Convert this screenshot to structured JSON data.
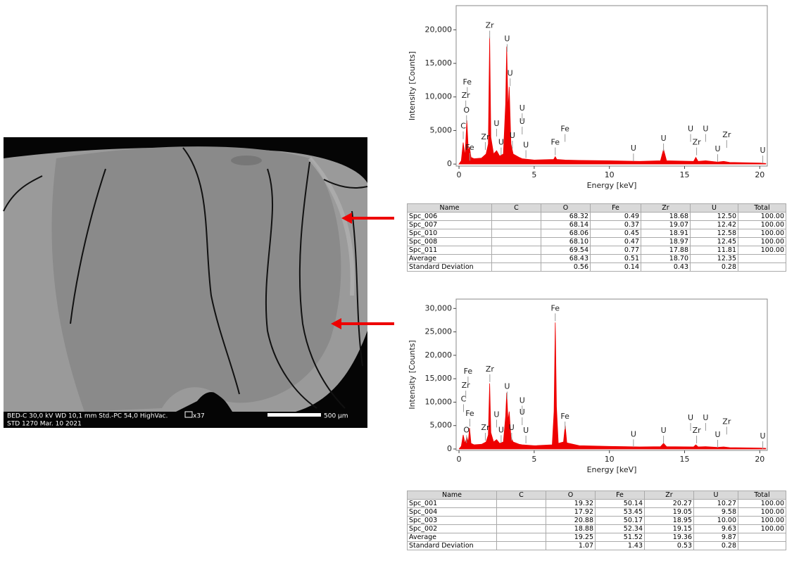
{
  "image": {
    "labels": [
      "BED-C  30,0 kV  WD 10,1 mm  Std.-PC 54,0  HighVac.",
      "x37",
      "STD    1270    Mar. 10 2021",
      "500 µm"
    ]
  },
  "chart_data": [
    {
      "type": "area",
      "x_label": "Energy [keV]",
      "y_label": "Intensity [Counts]",
      "color": "#ee0000",
      "xlim": [
        -0.19,
        20.5
      ],
      "ylim": [
        -300,
        23600
      ],
      "xticks": [
        0,
        5,
        10,
        15,
        20
      ],
      "yticks": [
        0,
        {
          "value": 5000,
          "label": "5,000"
        },
        {
          "value": 10000,
          "label": "10,000"
        },
        {
          "value": 15000,
          "label": "15,000"
        },
        {
          "value": 20000,
          "label": "20,000"
        }
      ],
      "x": [
        0,
        0.15,
        0.28,
        0.4,
        0.52,
        0.62,
        0.7,
        0.8,
        1.0,
        1.5,
        1.8,
        1.95,
        2.04,
        2.12,
        2.3,
        2.5,
        2.7,
        2.95,
        3.1,
        3.17,
        3.26,
        3.34,
        3.45,
        3.6,
        4.0,
        4.2,
        5,
        6.3,
        6.4,
        6.5,
        7.06,
        8,
        10,
        12,
        13.4,
        13.6,
        13.8,
        15.6,
        15.75,
        15.9,
        16.4,
        17.2,
        17.6,
        18,
        20,
        20.4
      ],
      "values": [
        0,
        500,
        3200,
        1200,
        6500,
        2000,
        2500,
        1000,
        800,
        900,
        1500,
        3000,
        19000,
        4000,
        1500,
        2000,
        1200,
        1500,
        9000,
        17500,
        8000,
        11500,
        3000,
        1500,
        1000,
        800,
        600,
        700,
        1100,
        700,
        600,
        550,
        500,
        400,
        500,
        2200,
        500,
        400,
        1000,
        400,
        500,
        300,
        400,
        250,
        150,
        100
      ],
      "annotations": [
        {
          "label": "C",
          "x": 0.28,
          "y": 5600
        },
        {
          "label": "O",
          "x": 0.5,
          "y": 8000
        },
        {
          "label": "Zr",
          "x": 0.45,
          "y": 10200
        },
        {
          "label": "Fe",
          "x": 0.55,
          "y": 12200
        },
        {
          "label": "Fe",
          "x": 0.72,
          "y": 2400
        },
        {
          "label": "Zr",
          "x": 2.04,
          "y": 20600
        },
        {
          "label": "U",
          "x": 3.2,
          "y": 18600
        },
        {
          "label": "U",
          "x": 3.4,
          "y": 13500
        },
        {
          "label": "U",
          "x": 2.5,
          "y": 6000
        },
        {
          "label": "Zr",
          "x": 1.75,
          "y": 4000
        },
        {
          "label": "U",
          "x": 2.8,
          "y": 3200
        },
        {
          "label": "U",
          "x": 3.55,
          "y": 4200
        },
        {
          "label": "U",
          "x": 4.2,
          "y": 8300
        },
        {
          "label": "U",
          "x": 4.2,
          "y": 6300
        },
        {
          "label": "U",
          "x": 4.45,
          "y": 2800
        },
        {
          "label": "Fe",
          "x": 6.4,
          "y": 3200
        },
        {
          "label": "Fe",
          "x": 7.05,
          "y": 5200
        },
        {
          "label": "U",
          "x": 11.6,
          "y": 2300
        },
        {
          "label": "U",
          "x": 13.6,
          "y": 3800
        },
        {
          "label": "U",
          "x": 15.4,
          "y": 5200
        },
        {
          "label": "U",
          "x": 16.4,
          "y": 5200
        },
        {
          "label": "Zr",
          "x": 15.8,
          "y": 3200
        },
        {
          "label": "Zr",
          "x": 17.8,
          "y": 4300
        },
        {
          "label": "U",
          "x": 17.2,
          "y": 2200
        },
        {
          "label": "U",
          "x": 20.2,
          "y": 2000
        }
      ]
    },
    {
      "type": "area",
      "x_label": "Energy [keV]",
      "y_label": "Intensity [Counts]",
      "color": "#ee0000",
      "xlim": [
        -0.19,
        20.5
      ],
      "ylim": [
        -300,
        32000
      ],
      "xticks": [
        0,
        5,
        10,
        15,
        20
      ],
      "yticks": [
        0,
        {
          "value": 5000,
          "label": "5,000"
        },
        {
          "value": 10000,
          "label": "10,000"
        },
        {
          "value": 15000,
          "label": "15,000"
        },
        {
          "value": 20000,
          "label": "20,000"
        },
        {
          "value": 25000,
          "label": "25,000"
        },
        {
          "value": 30000,
          "label": "30,000"
        }
      ],
      "x": [
        0,
        0.15,
        0.28,
        0.4,
        0.52,
        0.62,
        0.7,
        0.8,
        1.0,
        1.5,
        1.8,
        1.95,
        2.04,
        2.12,
        2.3,
        2.5,
        2.7,
        2.95,
        3.1,
        3.17,
        3.26,
        3.34,
        3.45,
        3.6,
        4.0,
        4.2,
        5,
        6.2,
        6.32,
        6.4,
        6.48,
        6.6,
        6.95,
        7.06,
        7.17,
        8,
        10,
        12,
        13.4,
        13.6,
        13.8,
        15.6,
        15.75,
        15.9,
        16.4,
        17.2,
        17.6,
        18,
        20,
        20.4
      ],
      "values": [
        0,
        600,
        3000,
        1200,
        2500,
        1500,
        4500,
        1200,
        900,
        1000,
        1500,
        3000,
        14000,
        3500,
        1500,
        2000,
        1200,
        1500,
        7000,
        12000,
        6000,
        8000,
        2500,
        1500,
        1000,
        900,
        700,
        900,
        8000,
        27000,
        9000,
        1200,
        1500,
        5000,
        1300,
        700,
        550,
        450,
        500,
        1200,
        500,
        450,
        900,
        450,
        500,
        350,
        450,
        300,
        200,
        150
      ],
      "annotations": [
        {
          "label": "C",
          "x": 0.3,
          "y": 10600
        },
        {
          "label": "Zr",
          "x": 0.45,
          "y": 13500
        },
        {
          "label": "Fe",
          "x": 0.6,
          "y": 16500
        },
        {
          "label": "Fe",
          "x": 0.72,
          "y": 7500
        },
        {
          "label": "O",
          "x": 0.5,
          "y": 4000
        },
        {
          "label": "Fe",
          "x": 6.4,
          "y": 30000
        },
        {
          "label": "Fe",
          "x": 7.05,
          "y": 6900
        },
        {
          "label": "Zr",
          "x": 2.05,
          "y": 17000
        },
        {
          "label": "Zr",
          "x": 1.75,
          "y": 4500
        },
        {
          "label": "U",
          "x": 3.2,
          "y": 13300
        },
        {
          "label": "U",
          "x": 2.5,
          "y": 7300
        },
        {
          "label": "U",
          "x": 2.8,
          "y": 4000
        },
        {
          "label": "U",
          "x": 3.5,
          "y": 4500
        },
        {
          "label": "U",
          "x": 4.2,
          "y": 10300
        },
        {
          "label": "U",
          "x": 4.2,
          "y": 7800
        },
        {
          "label": "U",
          "x": 4.45,
          "y": 3900
        },
        {
          "label": "U",
          "x": 11.6,
          "y": 3100
        },
        {
          "label": "U",
          "x": 13.6,
          "y": 3900
        },
        {
          "label": "U",
          "x": 15.4,
          "y": 6600
        },
        {
          "label": "U",
          "x": 16.4,
          "y": 6600
        },
        {
          "label": "Zr",
          "x": 15.8,
          "y": 3900
        },
        {
          "label": "Zr",
          "x": 17.8,
          "y": 5800
        },
        {
          "label": "U",
          "x": 17.2,
          "y": 3000
        },
        {
          "label": "U",
          "x": 20.2,
          "y": 2700
        }
      ]
    }
  ],
  "tables": [
    {
      "columns": [
        "Name",
        "C",
        "O",
        "Fe",
        "Zr",
        "U",
        "Total"
      ],
      "rows": [
        [
          "Spc_006",
          null,
          "68.32",
          "0.49",
          "18.68",
          "12.50",
          "100.00"
        ],
        [
          "Spc_007",
          null,
          "68.14",
          "0.37",
          "19.07",
          "12.42",
          "100.00"
        ],
        [
          "Spc_010",
          null,
          "68.06",
          "0.45",
          "18.91",
          "12.58",
          "100.00"
        ],
        [
          "Spc_008",
          null,
          "68.10",
          "0.47",
          "18.97",
          "12.45",
          "100.00"
        ],
        [
          "Spc_011",
          null,
          "69.54",
          "0.77",
          "17.88",
          "11.81",
          "100.00"
        ],
        [
          "Average",
          null,
          "68.43",
          "0.51",
          "18.70",
          "12.35",
          null
        ],
        [
          "Standard Deviation",
          null,
          "0.56",
          "0.14",
          "0.43",
          "0.28",
          null
        ]
      ]
    },
    {
      "columns": [
        "Name",
        "C",
        "O",
        "Fe",
        "Zr",
        "U",
        "Total"
      ],
      "rows": [
        [
          "Spc_001",
          null,
          "19.32",
          "50.14",
          "20.27",
          "10.27",
          "100.00"
        ],
        [
          "Spc_004",
          null,
          "17.92",
          "53.45",
          "19.05",
          "9.58",
          "100.00"
        ],
        [
          "Spc_003",
          null,
          "20.88",
          "50.17",
          "18.95",
          "10.00",
          "100.00"
        ],
        [
          "Spc_002",
          null,
          "18.88",
          "52.34",
          "19.15",
          "9.63",
          "100.00"
        ],
        [
          "Average",
          null,
          "19.25",
          "51.52",
          "19.36",
          "9.87",
          null
        ],
        [
          "Standard Deviation",
          null,
          "1.07",
          "1.43",
          "0.53",
          "0.28",
          null
        ]
      ]
    }
  ]
}
